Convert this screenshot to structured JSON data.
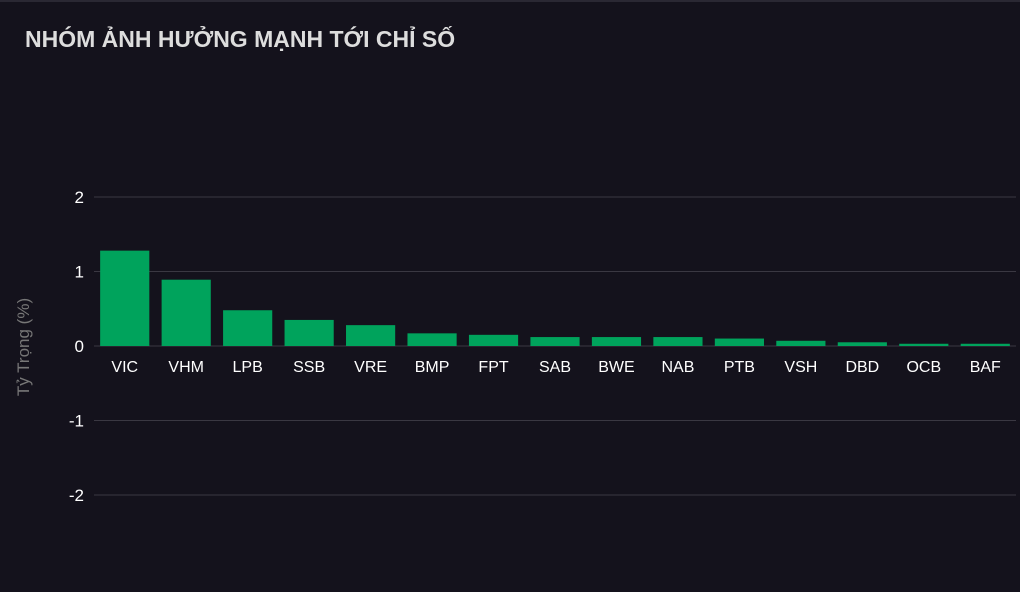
{
  "header": {
    "title": "NHÓM ẢNH HƯỞNG MẠNH TỚI CHỈ SỐ"
  },
  "chart_data": {
    "type": "bar",
    "title": "NHÓM ẢNH HƯỞNG MẠNH TỚI CHỈ SỐ",
    "xlabel": "",
    "ylabel": "Tỷ Trọng (%)",
    "categories": [
      "VIC",
      "VHM",
      "LPB",
      "SSB",
      "VRE",
      "BMP",
      "FPT",
      "SAB",
      "BWE",
      "NAB",
      "PTB",
      "VSH",
      "DBD",
      "OCB",
      "BAF"
    ],
    "values": [
      1.28,
      0.89,
      0.48,
      0.35,
      0.28,
      0.17,
      0.15,
      0.12,
      0.12,
      0.12,
      0.1,
      0.07,
      0.05,
      0.03,
      0.03
    ],
    "ylim": [
      -2,
      2
    ],
    "yticks": [
      2,
      1,
      0,
      -1,
      -2
    ],
    "grid": true,
    "legend": "none",
    "bar_color": "#00a35c"
  }
}
